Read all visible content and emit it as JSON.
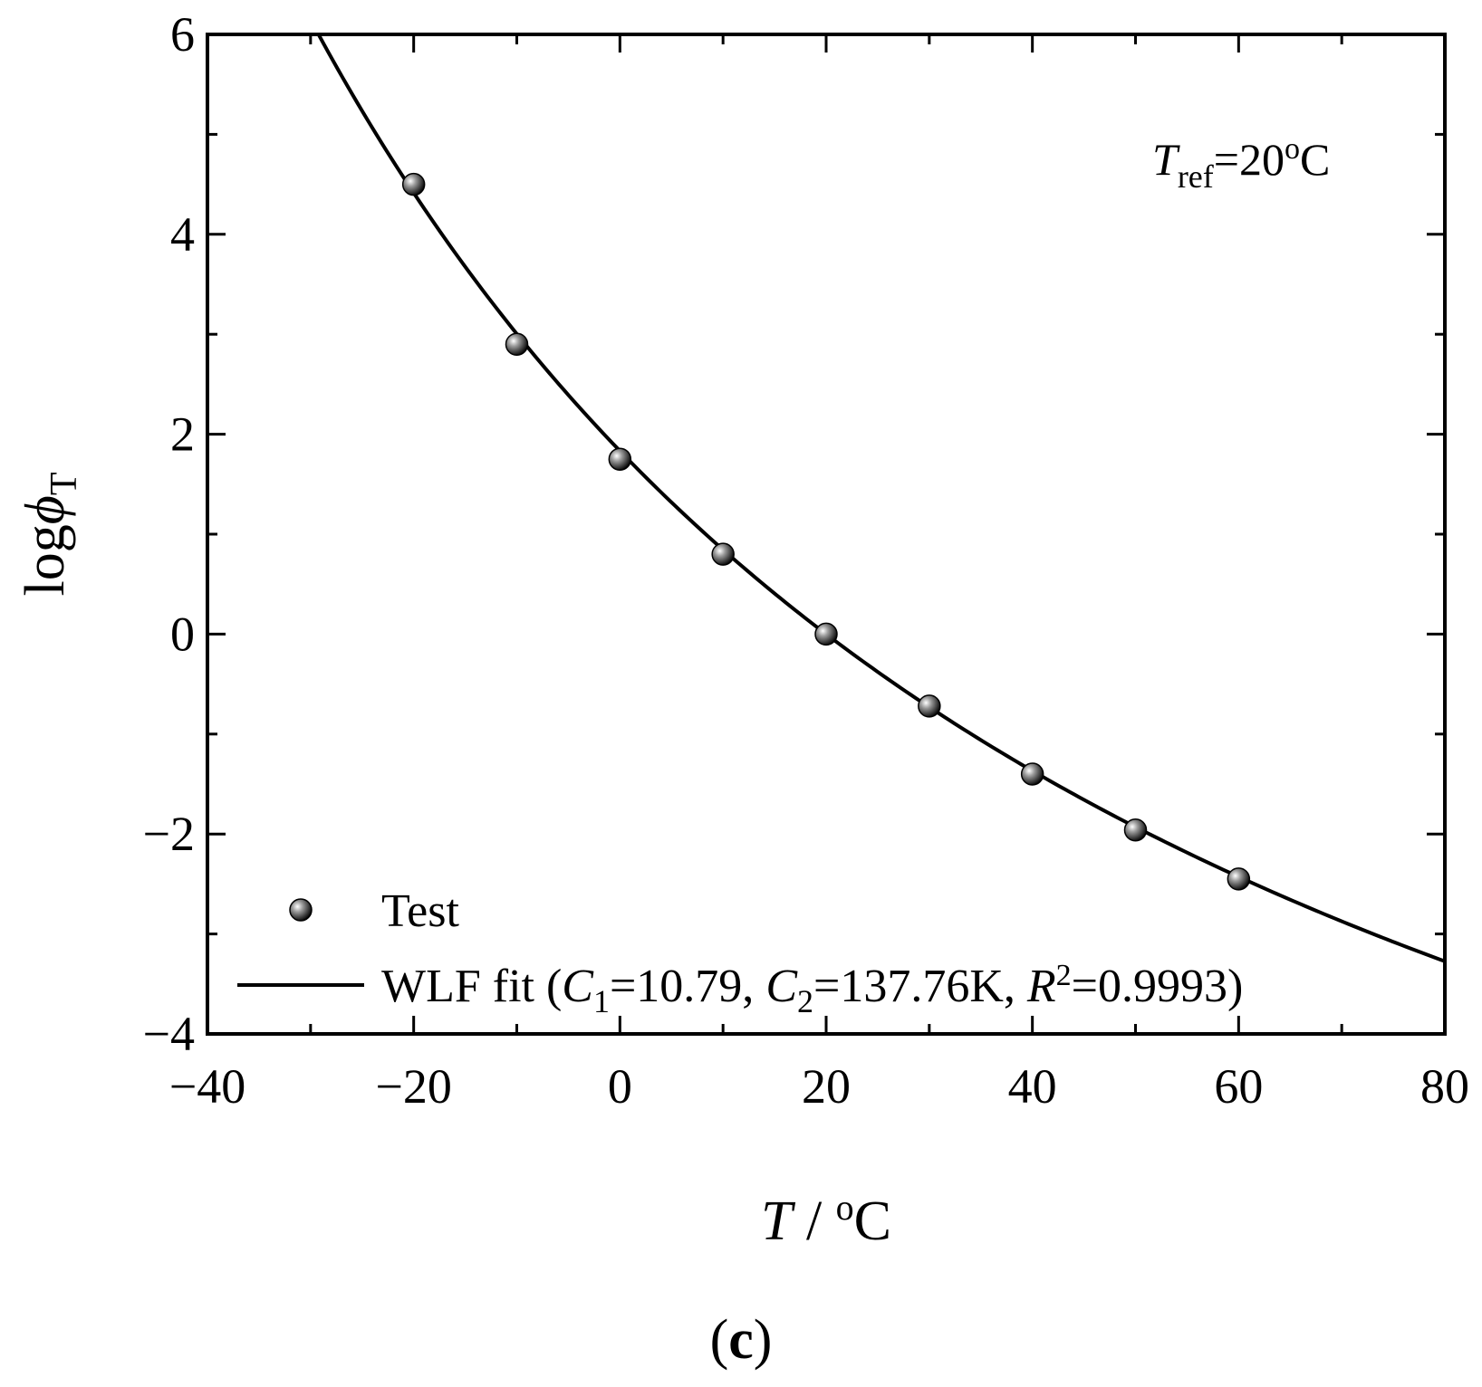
{
  "chart_data": {
    "type": "scatter",
    "title": "",
    "xlabel": {
      "var": "T",
      "sep": " / ",
      "unit_deg": "o",
      "unit_c": "C"
    },
    "ylabel": {
      "main": "log",
      "sym": "ϕ",
      "sub": "T"
    },
    "xlim": [
      -40,
      80
    ],
    "ylim": [
      -4,
      6
    ],
    "xticks": [
      -40,
      -20,
      0,
      20,
      40,
      60,
      80
    ],
    "yticks": [
      -4,
      -2,
      0,
      2,
      4,
      6
    ],
    "xtick_labels": [
      "−40",
      "−20",
      "0",
      "20",
      "40",
      "60",
      "80"
    ],
    "ytick_labels": [
      "−4",
      "−2",
      "0",
      "2",
      "4",
      "6"
    ],
    "grid": false,
    "legend_position": "bottom-left",
    "series": [
      {
        "name": "Test",
        "kind": "points",
        "x": [
          -20,
          -10,
          0,
          10,
          20,
          30,
          40,
          50,
          60
        ],
        "y": [
          4.5,
          2.9,
          1.75,
          0.8,
          0.0,
          -0.72,
          -1.4,
          -1.96,
          -2.45
        ]
      },
      {
        "name": "WLF fit",
        "kind": "line",
        "model": "wlf",
        "C1": 10.79,
        "C2": 137.76,
        "Tref": 20
      }
    ],
    "legend_fit": {
      "prefix": "WLF fit (",
      "c1_var": "C",
      "c1_sub": "1",
      "c1_val": "=10.79, ",
      "c2_var": "C",
      "c2_sub": "2",
      "c2_val": "=137.76K, ",
      "r_var": "R",
      "r_sup": "2",
      "r_val": "=0.9993)"
    },
    "annotation": {
      "var": "T",
      "sub": "ref",
      "val": "=20",
      "deg": "o",
      "unit": "C"
    },
    "panel_label": "(c)"
  }
}
